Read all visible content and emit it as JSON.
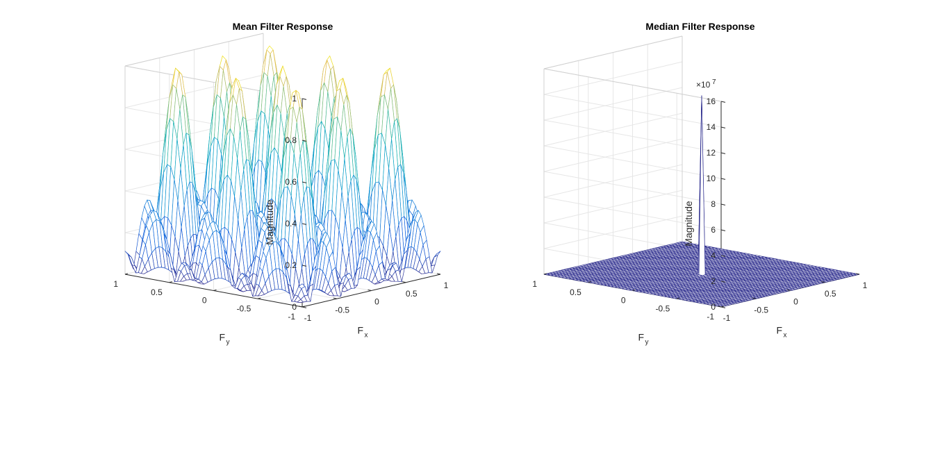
{
  "chart_data": [
    {
      "type": "surface",
      "title": "Mean Filter Response",
      "xlabel": "F",
      "xlabel_sub": "x",
      "ylabel": "F",
      "ylabel_sub": "y",
      "zlabel": "Magnitude",
      "xlim": [
        -1,
        1
      ],
      "ylim": [
        -1,
        1
      ],
      "zlim": [
        0,
        1
      ],
      "xticks": [
        -1,
        -0.5,
        0,
        0.5,
        1
      ],
      "yticks": [
        -1,
        -0.5,
        0,
        0.5,
        1
      ],
      "zticks": [
        0,
        0.2,
        0.4,
        0.6,
        0.8,
        1
      ],
      "xtick_labels": [
        "-1",
        "-0.5",
        "0",
        "0.5",
        "1"
      ],
      "ytick_labels": [
        "-1",
        "-0.5",
        "0",
        "0.5",
        "1"
      ],
      "ztick_labels": [
        "0",
        "0.2",
        "0.4",
        "0.6",
        "0.8",
        "1"
      ],
      "function": "abs(sinc)*abs(sinc) separable box-filter magnitude, peak 1 at (0,0), zeros near |F|=0.33 and 0.67",
      "grid_points": 51,
      "colormap": "parula",
      "grid": true
    },
    {
      "type": "surface",
      "title": "Median Filter Response",
      "xlabel": "F",
      "xlabel_sub": "x",
      "ylabel": "F",
      "ylabel_sub": "y",
      "zlabel": "Magnitude",
      "z_exponent_label": "×10",
      "z_exponent_power": "7",
      "xlim": [
        -1,
        1
      ],
      "ylim": [
        -1,
        1
      ],
      "zlim": [
        0,
        16
      ],
      "xticks": [
        -1,
        -0.5,
        0,
        0.5,
        1
      ],
      "yticks": [
        -1,
        -0.5,
        0,
        0.5,
        1
      ],
      "zticks": [
        0,
        2,
        4,
        6,
        8,
        10,
        12,
        14,
        16
      ],
      "xtick_labels": [
        "-1",
        "-0.5",
        "0",
        "0.5",
        "1"
      ],
      "ytick_labels": [
        "-1",
        "-0.5",
        "0",
        "0.5",
        "1"
      ],
      "ztick_labels": [
        "0",
        "2",
        "4",
        "6",
        "8",
        "10",
        "12",
        "14",
        "16"
      ],
      "peak": {
        "x": 0,
        "y": 0,
        "z": 13.9
      },
      "grid_points": 51,
      "mesh_color": "#2a2a8c",
      "grid": true
    }
  ]
}
